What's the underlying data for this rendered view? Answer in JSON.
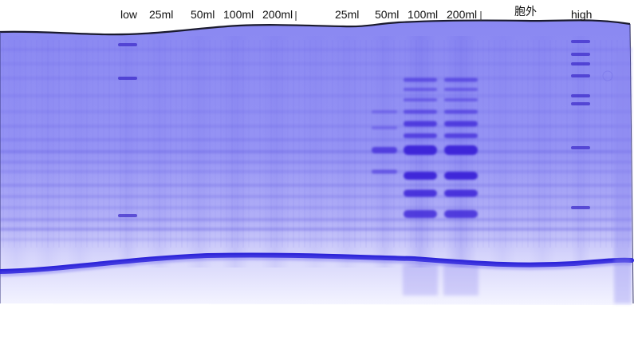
{
  "lane_labels": {
    "low": "low",
    "a_25": "25ml",
    "a_50": "50ml",
    "a_100": "100ml",
    "a_200": "200ml",
    "b_25": "25ml",
    "b_50": "50ml",
    "b_100": "100ml",
    "b_200": "200ml",
    "extracellular": "胞外",
    "high": "high"
  },
  "colors": {
    "gel_base": "#8f8ff4",
    "band": "#4a2fd6",
    "dye_front": "#2626d8",
    "label_text": "#111111"
  }
}
